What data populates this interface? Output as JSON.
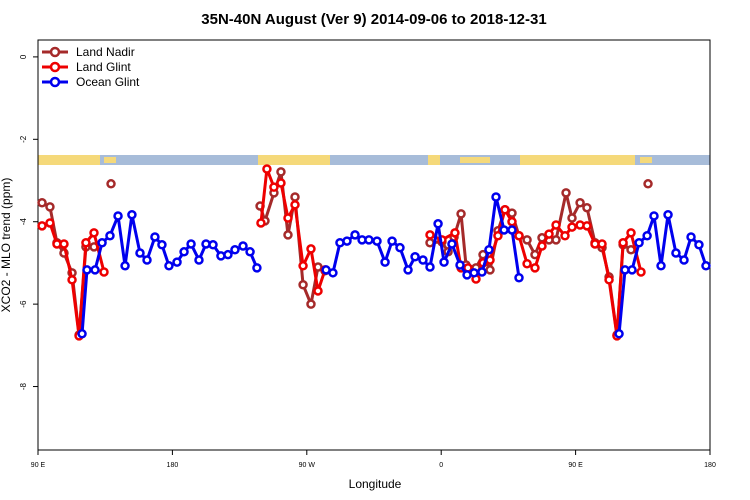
{
  "chart_data": {
    "type": "line",
    "title": "35N-40N August (Ver 9)   2014-09-06 to 2018-12-31",
    "x_label": "Longitude",
    "y_label": "XCO2 - MLO trend (ppm)",
    "xlim": [
      90,
      540
    ],
    "xticks": [
      {
        "value": 90,
        "label": "90 E"
      },
      180,
      {
        "value": 270,
        "label": "90 W"
      },
      {
        "value": 360,
        "label": "0"
      },
      {
        "value": 450,
        "label": "90 E"
      },
      {
        "value": 540,
        "label": "180"
      }
    ],
    "ylim": [
      -9.54,
      0.41
    ],
    "yticks": [
      0,
      -2,
      -4,
      -6,
      -8
    ],
    "legend": "top-left",
    "series": [
      {
        "name": "Land Nadir",
        "color": "#a52a2a",
        "x": [
          92.7,
          98.0,
          102.7,
          107.4,
          112.8,
          117.5,
          122.1,
          127.5,
          null,
          138.9,
          null,
          238.7,
          242.0,
          248.0,
          252.7,
          257.4,
          262.1,
          267.5,
          272.8,
          277.5,
          282.2,
          null,
          352.5,
          360.5,
          364.6,
          368.6,
          373.3,
          376.6,
          383.3,
          388.0,
          392.7,
          398.0,
          402.7,
          407.4,
          412.1,
          417.5,
          422.8,
          427.5,
          432.2,
          436.9,
          443.6,
          447.6,
          453.0,
          457.6,
          463.0,
          467.7,
          472.4,
          477.7,
          481.8,
          487.1,
          null,
          498.5
        ],
        "values": [
          -3.54,
          -3.64,
          -4.51,
          -4.76,
          -5.24,
          -6.75,
          -4.61,
          -4.61,
          null,
          -3.08,
          null,
          -3.62,
          -3.98,
          -3.3,
          -2.79,
          -4.32,
          -3.4,
          -5.53,
          -6.0,
          -5.1,
          -5.19,
          null,
          -4.51,
          -4.49,
          -4.73,
          -4.37,
          -3.81,
          -5.05,
          -5.12,
          -4.8,
          -5.17,
          -4.22,
          -3.71,
          -3.79,
          -4.34,
          -4.44,
          -4.8,
          -4.39,
          -4.44,
          -4.44,
          -3.3,
          -3.91,
          -3.54,
          -3.66,
          -4.51,
          -4.63,
          -5.34,
          -6.75,
          -4.56,
          -4.68,
          null,
          -3.08
        ]
      },
      {
        "name": "Land Glint",
        "color": "#ee0000",
        "x": [
          92.7,
          98.0,
          102.7,
          107.4,
          112.8,
          117.5,
          122.1,
          127.5,
          134.2,
          null,
          239.3,
          243.3,
          248.0,
          252.7,
          257.4,
          262.1,
          267.5,
          272.8,
          277.5,
          282.2,
          null,
          352.5,
          360.5,
          369.2,
          373.3,
          377.9,
          383.3,
          388.0,
          392.7,
          398.0,
          402.7,
          407.4,
          412.1,
          417.5,
          422.8,
          427.5,
          432.2,
          436.9,
          442.9,
          447.6,
          453.0,
          457.6,
          463.0,
          467.7,
          472.4,
          477.7,
          481.8,
          487.1,
          493.8
        ],
        "values": [
          -4.1,
          -4.03,
          -4.54,
          -4.54,
          -5.41,
          -6.77,
          -4.51,
          -4.27,
          -5.22,
          null,
          -4.03,
          -2.72,
          -3.16,
          -3.06,
          -3.91,
          -3.59,
          -5.07,
          -4.66,
          -5.68,
          -5.17,
          null,
          -4.32,
          -4.44,
          -4.27,
          -5.12,
          -5.12,
          -5.39,
          -5.0,
          -4.93,
          -4.34,
          -3.71,
          -4.0,
          -4.34,
          -5.02,
          -5.12,
          -4.59,
          -4.3,
          -4.08,
          -4.34,
          -4.13,
          -4.08,
          -4.1,
          -4.54,
          -4.54,
          -5.41,
          -6.77,
          -4.51,
          -4.27,
          -5.22
        ]
      },
      {
        "name": "Ocean Glint",
        "color": "#0000ee",
        "x": [
          119.5,
          122.8,
          128.2,
          132.9,
          138.2,
          143.6,
          148.3,
          152.9,
          158.3,
          163.0,
          168.3,
          173.0,
          177.7,
          183.1,
          187.8,
          192.5,
          197.8,
          202.5,
          207.2,
          212.5,
          217.2,
          221.9,
          227.3,
          232.0,
          236.6,
          null,
          282.9,
          287.5,
          292.2,
          296.9,
          302.3,
          307.0,
          311.6,
          317.0,
          322.4,
          327.1,
          332.4,
          337.8,
          342.5,
          347.8,
          352.5,
          357.9,
          361.9,
          367.2,
          372.6,
          377.3,
          382.0,
          387.3,
          392.0,
          396.7,
          402.1,
          407.4,
          412.1,
          null,
          479.1,
          483.1,
          487.8,
          492.5,
          497.9,
          502.5,
          507.2,
          511.9,
          517.2,
          522.6,
          527.3,
          532.6,
          537.3
        ],
        "values": [
          -6.72,
          -5.17,
          -5.17,
          -4.51,
          -4.34,
          -3.86,
          -5.07,
          -3.83,
          -4.76,
          -4.93,
          -4.37,
          -4.56,
          -5.07,
          -4.98,
          -4.73,
          -4.54,
          -4.93,
          -4.54,
          -4.56,
          -4.83,
          -4.8,
          -4.68,
          -4.59,
          -4.73,
          -5.12,
          null,
          -5.17,
          -5.24,
          -4.51,
          -4.47,
          -4.32,
          -4.44,
          -4.44,
          -4.47,
          -4.98,
          -4.47,
          -4.63,
          -5.17,
          -4.85,
          -4.93,
          -5.1,
          -4.05,
          -4.98,
          -4.54,
          -5.05,
          -5.29,
          -5.24,
          -5.22,
          -4.68,
          -3.4,
          -4.2,
          -4.2,
          -5.36,
          null,
          -6.72,
          -5.17,
          -5.17,
          -4.51,
          -4.34,
          -3.86,
          -5.07,
          -3.83,
          -4.76,
          -4.93,
          -4.37,
          -4.56,
          -5.07
        ]
      }
    ]
  }
}
